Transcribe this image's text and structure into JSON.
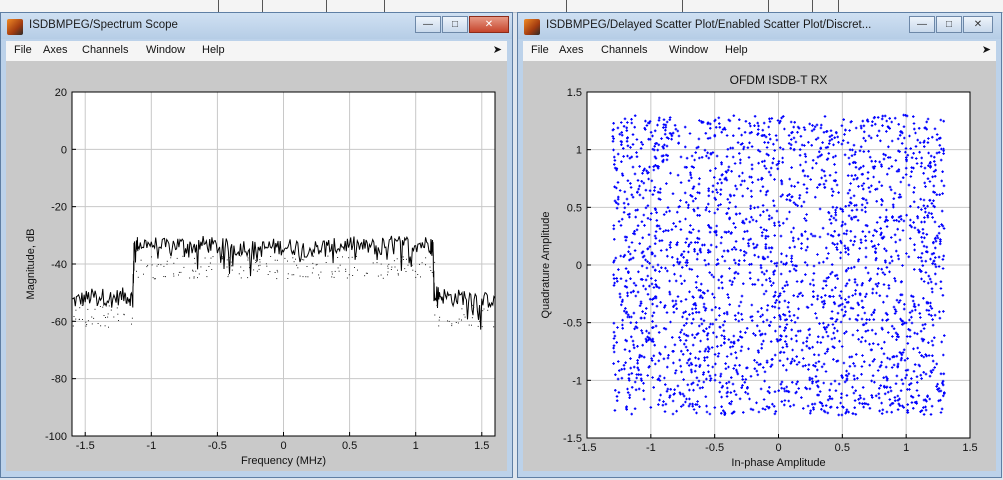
{
  "left_window": {
    "title": "ISDBMPEG/Spectrum Scope",
    "menu": [
      "File",
      "Axes",
      "Channels",
      "Window",
      "Help"
    ]
  },
  "right_window": {
    "title": "ISDBMPEG/Delayed Scatter Plot/Enabled Scatter Plot/Discret...",
    "menu": [
      "File",
      "Axes",
      "Channels",
      "Window",
      "Help"
    ]
  },
  "chart_data": [
    {
      "type": "line",
      "title": "",
      "xlabel": "Frequency (MHz)",
      "ylabel": "Magnitude, dB",
      "xlim": [
        -1.6,
        1.6
      ],
      "ylim": [
        -100,
        20
      ],
      "xticks": [
        "-1.5",
        "-1",
        "-0.5",
        "0",
        "0.5",
        "1",
        "1.5"
      ],
      "yticks": [
        "20",
        "0",
        "-20",
        "-40",
        "-60",
        "-80",
        "-100"
      ],
      "grid": true,
      "series": [
        {
          "color": "#000000",
          "x": [
            -1.6,
            -1.5,
            -1.4,
            -1.3,
            -1.2,
            -1.14,
            -1.13,
            -1.1,
            -1.0,
            -0.9,
            -0.8,
            -0.7,
            -0.6,
            -0.5,
            -0.4,
            -0.3,
            -0.2,
            -0.1,
            0.0,
            0.1,
            0.2,
            0.3,
            0.4,
            0.5,
            0.6,
            0.7,
            0.8,
            0.9,
            1.0,
            1.1,
            1.13,
            1.14,
            1.2,
            1.3,
            1.4,
            1.5,
            1.6
          ],
          "y": [
            -53,
            -52,
            -51,
            -52,
            -51,
            -52,
            -34,
            -33,
            -33,
            -34,
            -33,
            -34,
            -33,
            -34,
            -34,
            -34,
            -35,
            -34,
            -34,
            -34,
            -35,
            -34,
            -34,
            -33,
            -34,
            -34,
            -33,
            -33,
            -33,
            -33,
            -33,
            -50,
            -51,
            -52,
            -51,
            -53,
            -52
          ]
        }
      ]
    },
    {
      "type": "scatter",
      "title": "OFDM ISDB-T RX",
      "xlabel": "In-phase Amplitude",
      "ylabel": "Quadrature Amplitude",
      "xlim": [
        -1.5,
        1.5
      ],
      "ylim": [
        -1.5,
        1.5
      ],
      "xticks": [
        "-1.5",
        "-1",
        "-0.5",
        "0",
        "0.5",
        "1",
        "1.5"
      ],
      "yticks": [
        "1.5",
        "1",
        "0.5",
        "0",
        "-0.5",
        "-1",
        "-1.5"
      ],
      "grid": true,
      "point_color": "#0000ff",
      "approx_point_count": 2600,
      "x_range_of_points": [
        -1.3,
        1.3
      ],
      "y_range_of_points": [
        -1.3,
        1.3
      ]
    }
  ]
}
